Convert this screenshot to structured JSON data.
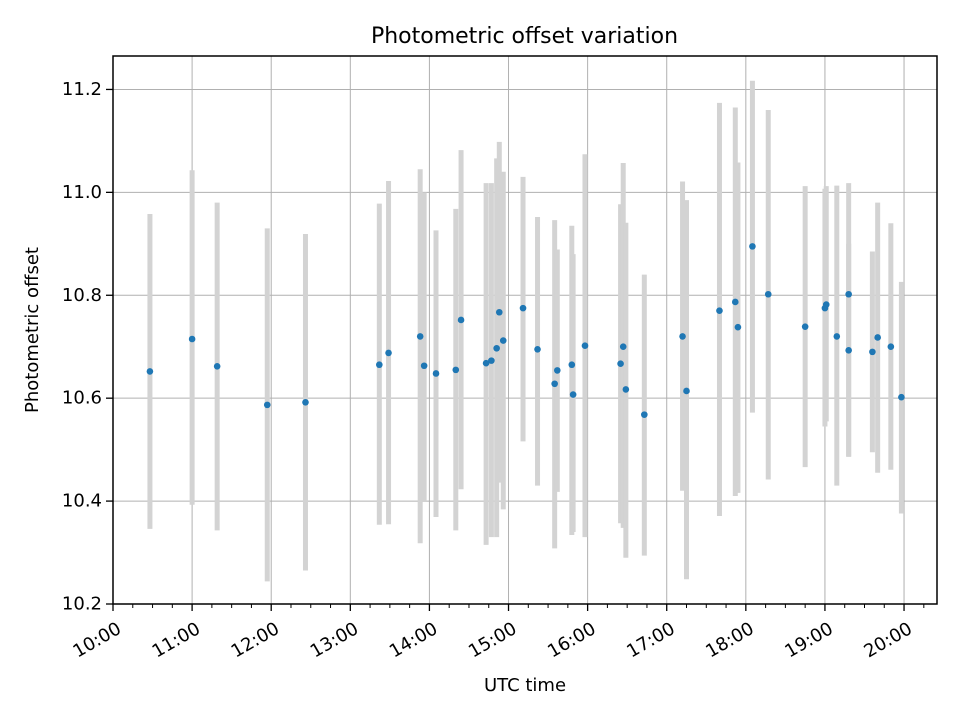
{
  "chart_data": {
    "type": "scatter",
    "title": "Photometric offset variation",
    "xlabel": "UTC time",
    "ylabel": "Photometric offset",
    "x_is_time": true,
    "xlim": [
      "10:00",
      "20:25"
    ],
    "ylim": [
      10.2,
      11.265
    ],
    "x_ticks": [
      "10:00",
      "11:00",
      "12:00",
      "13:00",
      "14:00",
      "15:00",
      "16:00",
      "17:00",
      "18:00",
      "19:00",
      "20:00"
    ],
    "y_ticks": [
      "10.2",
      "10.4",
      "10.6",
      "10.8",
      "11.0",
      "11.2"
    ],
    "grid": true,
    "marker_color": "#1f77b4",
    "errorbar_color": "#d3d3d3",
    "series": [
      {
        "x": [
          "10:28",
          "11:00",
          "11:19",
          "11:57",
          "12:26",
          "13:22",
          "13:29",
          "13:53",
          "13:56",
          "14:05",
          "14:20",
          "14:24",
          "14:43",
          "14:47",
          "14:51",
          "14:53",
          "14:56",
          "15:11",
          "15:22",
          "15:35",
          "15:37",
          "15:48",
          "15:49",
          "15:58",
          "16:25",
          "16:27",
          "16:29",
          "16:43",
          "17:12",
          "17:15",
          "17:40",
          "17:52",
          "17:54",
          "18:05",
          "18:17",
          "18:45",
          "19:00",
          "19:01",
          "19:09",
          "19:18",
          "19:18",
          "19:36",
          "19:40",
          "19:50",
          "19:58"
        ],
        "y": [
          10.652,
          10.715,
          10.662,
          10.587,
          10.592,
          10.665,
          10.688,
          10.72,
          10.663,
          10.648,
          10.655,
          10.752,
          10.668,
          10.673,
          10.697,
          10.767,
          10.712,
          10.775,
          10.695,
          10.628,
          10.654,
          10.665,
          10.607,
          10.702,
          10.667,
          10.7,
          10.617,
          10.568,
          10.72,
          10.614,
          10.77,
          10.787,
          10.738,
          10.895,
          10.802,
          10.739,
          10.775,
          10.782,
          10.72,
          10.693,
          10.802,
          10.69,
          10.718,
          10.7,
          10.602
        ],
        "err_low": [
          10.346,
          10.393,
          10.343,
          10.244,
          10.265,
          10.354,
          10.355,
          10.318,
          10.4,
          10.369,
          10.343,
          10.423,
          10.315,
          10.33,
          10.33,
          10.436,
          10.384,
          10.516,
          10.43,
          10.308,
          10.418,
          10.334,
          10.34,
          10.33,
          10.357,
          10.348,
          10.29,
          10.294,
          10.42,
          10.248,
          10.371,
          10.41,
          10.416,
          10.572,
          10.442,
          10.466,
          10.545,
          10.555,
          10.43,
          10.487,
          10.486,
          10.495,
          10.455,
          10.461,
          10.376
        ],
        "err_high": [
          10.958,
          11.043,
          10.98,
          10.93,
          10.919,
          10.978,
          11.022,
          11.045,
          11.0,
          10.926,
          10.968,
          11.082,
          11.018,
          11.018,
          11.066,
          11.098,
          11.04,
          11.03,
          10.952,
          10.946,
          10.889,
          10.935,
          10.88,
          11.074,
          10.977,
          11.057,
          10.941,
          10.84,
          11.021,
          10.985,
          11.174,
          11.165,
          11.058,
          11.217,
          11.16,
          11.012,
          11.007,
          11.012,
          11.013,
          10.9,
          11.018,
          10.885,
          10.98,
          10.94,
          10.826
        ]
      }
    ]
  }
}
